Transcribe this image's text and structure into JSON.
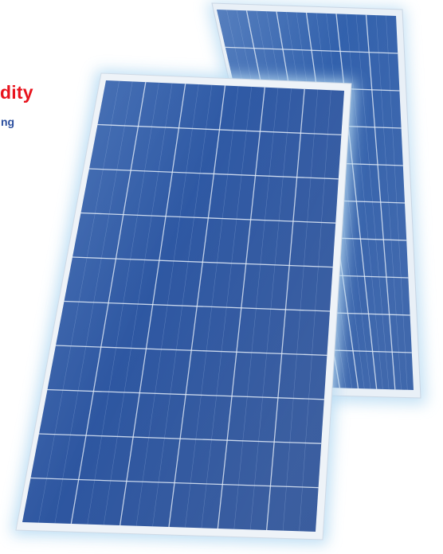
{
  "headline": "dity",
  "subline": "ng",
  "colors": {
    "headline": "#e8141e",
    "subline": "#2b4f9e",
    "cell": "#2c57a3",
    "frame": "#eef3f8",
    "glow": "#b9dcf3"
  },
  "panels": [
    {
      "name": "back-solar-panel",
      "columns": 6,
      "rows": 10
    },
    {
      "name": "front-solar-panel",
      "columns": 6,
      "rows": 10
    }
  ]
}
